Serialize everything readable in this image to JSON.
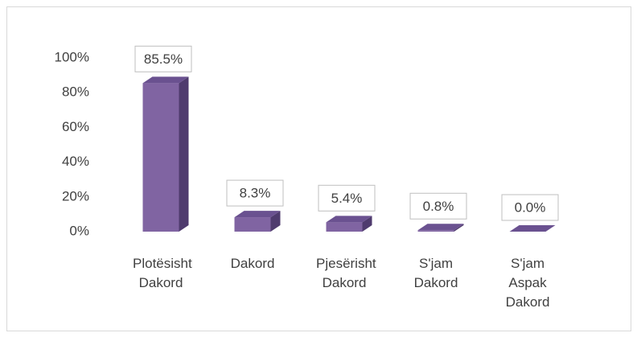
{
  "chart_data": {
    "type": "bar3d",
    "categories": [
      "Plotësisht Dakord",
      "Dakord",
      "Pjesërisht Dakord",
      "S'jam Dakord",
      "S'jam Aspak Dakord"
    ],
    "values": [
      85.5,
      8.3,
      5.4,
      0.8,
      0.0
    ],
    "value_labels": [
      "85.5%",
      "8.3%",
      "5.4%",
      "0.8%",
      "0.0%"
    ],
    "color": "#8064a2",
    "ylim": [
      0,
      100
    ],
    "yticks": [
      {
        "value": 0,
        "label": "0%"
      },
      {
        "value": 20,
        "label": "20%"
      },
      {
        "value": 40,
        "label": "40%"
      },
      {
        "value": 60,
        "label": "60%"
      },
      {
        "value": 80,
        "label": "80%"
      },
      {
        "value": 100,
        "label": "100%"
      }
    ]
  }
}
